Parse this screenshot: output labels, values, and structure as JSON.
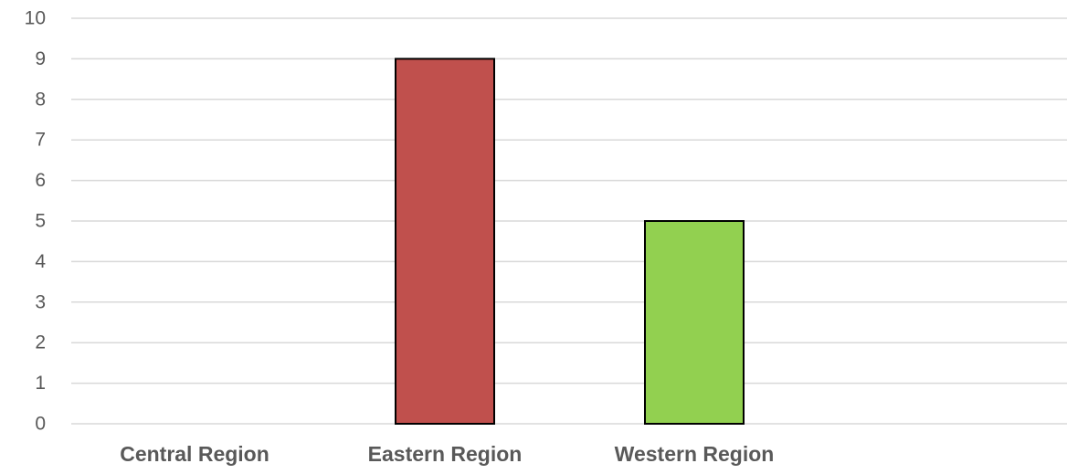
{
  "chart_data": {
    "type": "bar",
    "categories": [
      "Central Region",
      "Eastern Region",
      "Western Region"
    ],
    "values": [
      0,
      9,
      5
    ],
    "colors": [
      "#C0504D",
      "#C0504D",
      "#92D050"
    ],
    "ylim": [
      0,
      10
    ],
    "yticks": [
      0,
      1,
      2,
      3,
      4,
      5,
      6,
      7,
      8,
      9,
      10
    ],
    "grid": true,
    "legend": "none",
    "title": "",
    "xlabel": "",
    "ylabel": ""
  }
}
